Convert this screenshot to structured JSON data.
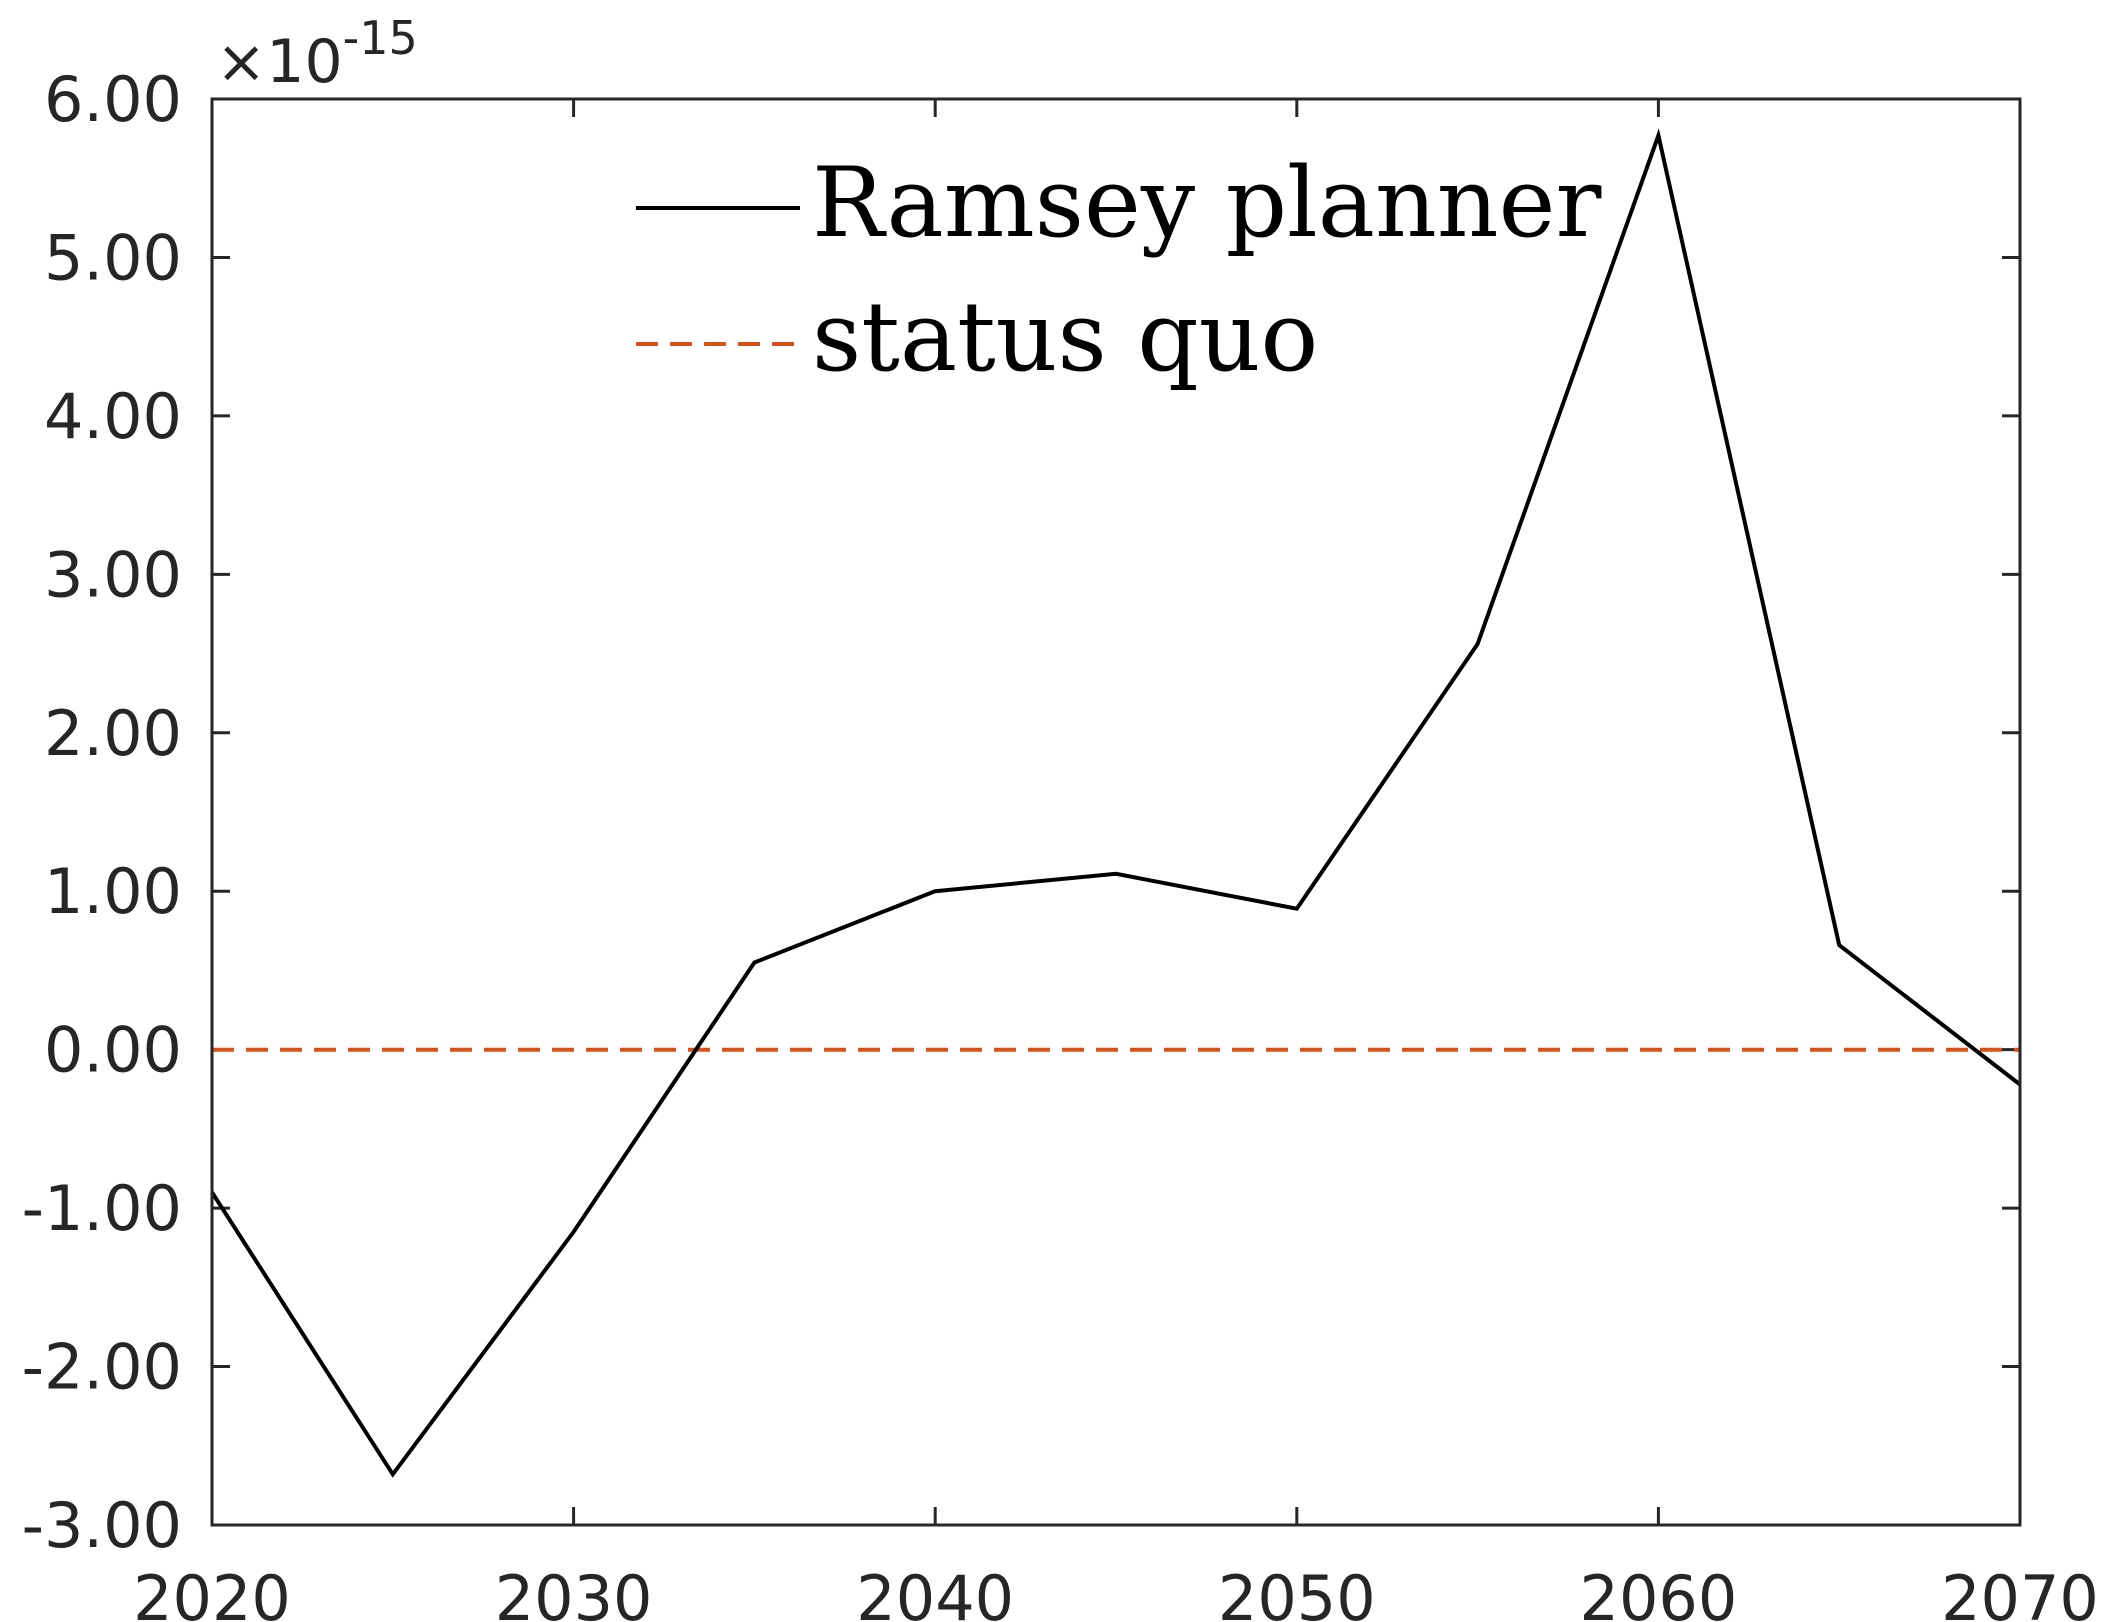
{
  "chart_data": {
    "type": "line",
    "x": [
      2020,
      2025,
      2030,
      2035,
      2040,
      2045,
      2050,
      2055,
      2060,
      2065,
      2070
    ],
    "series": [
      {
        "name": "Ramsey planner",
        "color": "#000000",
        "style": "solid",
        "values": [
          -0.9,
          -2.68,
          -1.15,
          0.55,
          1.0,
          1.11,
          0.89,
          2.56,
          5.77,
          0.66,
          -0.22
        ]
      },
      {
        "name": "status quo",
        "color": "#D95319",
        "style": "dashed",
        "values": [
          0,
          0,
          0,
          0,
          0,
          0,
          0,
          0,
          0,
          0,
          0
        ]
      }
    ],
    "xlim": [
      2020,
      2070
    ],
    "ylim": [
      -3,
      6
    ],
    "x_ticks": [
      2020,
      2030,
      2040,
      2050,
      2060,
      2070
    ],
    "y_ticks": [
      -3,
      -2,
      -1,
      0,
      1,
      2,
      3,
      4,
      5,
      6
    ],
    "x_tick_labels": [
      "2020",
      "2030",
      "2040",
      "2050",
      "2060",
      "2070"
    ],
    "y_tick_labels": [
      "-3.00",
      "-2.00",
      "-1.00",
      "0.00",
      "1.00",
      "2.00",
      "3.00",
      "4.00",
      "5.00",
      "6.00"
    ],
    "y_multiplier": {
      "prefix": "×10",
      "exponent": "-15"
    },
    "title": "",
    "xlabel": "",
    "ylabel": "",
    "legend_position": "top-center",
    "grid": false
  }
}
